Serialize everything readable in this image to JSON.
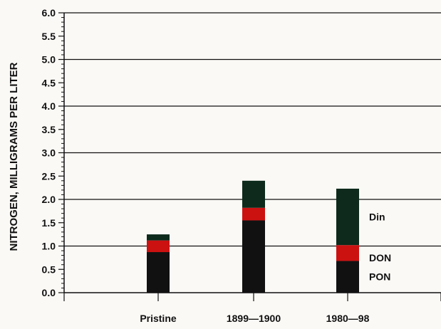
{
  "chart_data": {
    "type": "bar",
    "stacked": true,
    "title": "",
    "xlabel": "",
    "ylabel": "NITROGEN, MILLIGRAMS PER LITER",
    "ylim": [
      0,
      6.0
    ],
    "yticks": [
      "0.0",
      "0.5",
      "1.0",
      "1.5",
      "2.0",
      "2.5",
      "3.0",
      "3.5",
      "4.0",
      "4.5",
      "5.0",
      "5.5",
      "6.0"
    ],
    "categories": [
      "Pristine",
      "1899—1900",
      "1980—98"
    ],
    "grid": "horizontal lines at 1.0-unit intervals",
    "legend": "labels beside the 1980—98 bar",
    "series": [
      {
        "name": "PON",
        "values": [
          0.87,
          1.55,
          0.68
        ],
        "color": "#111111"
      },
      {
        "name": "DON",
        "values": [
          0.25,
          0.27,
          0.34
        ],
        "color": "#cc1111"
      },
      {
        "name": "Din",
        "values": [
          0.13,
          0.58,
          1.21
        ],
        "color": "#0d2a1c"
      }
    ]
  }
}
